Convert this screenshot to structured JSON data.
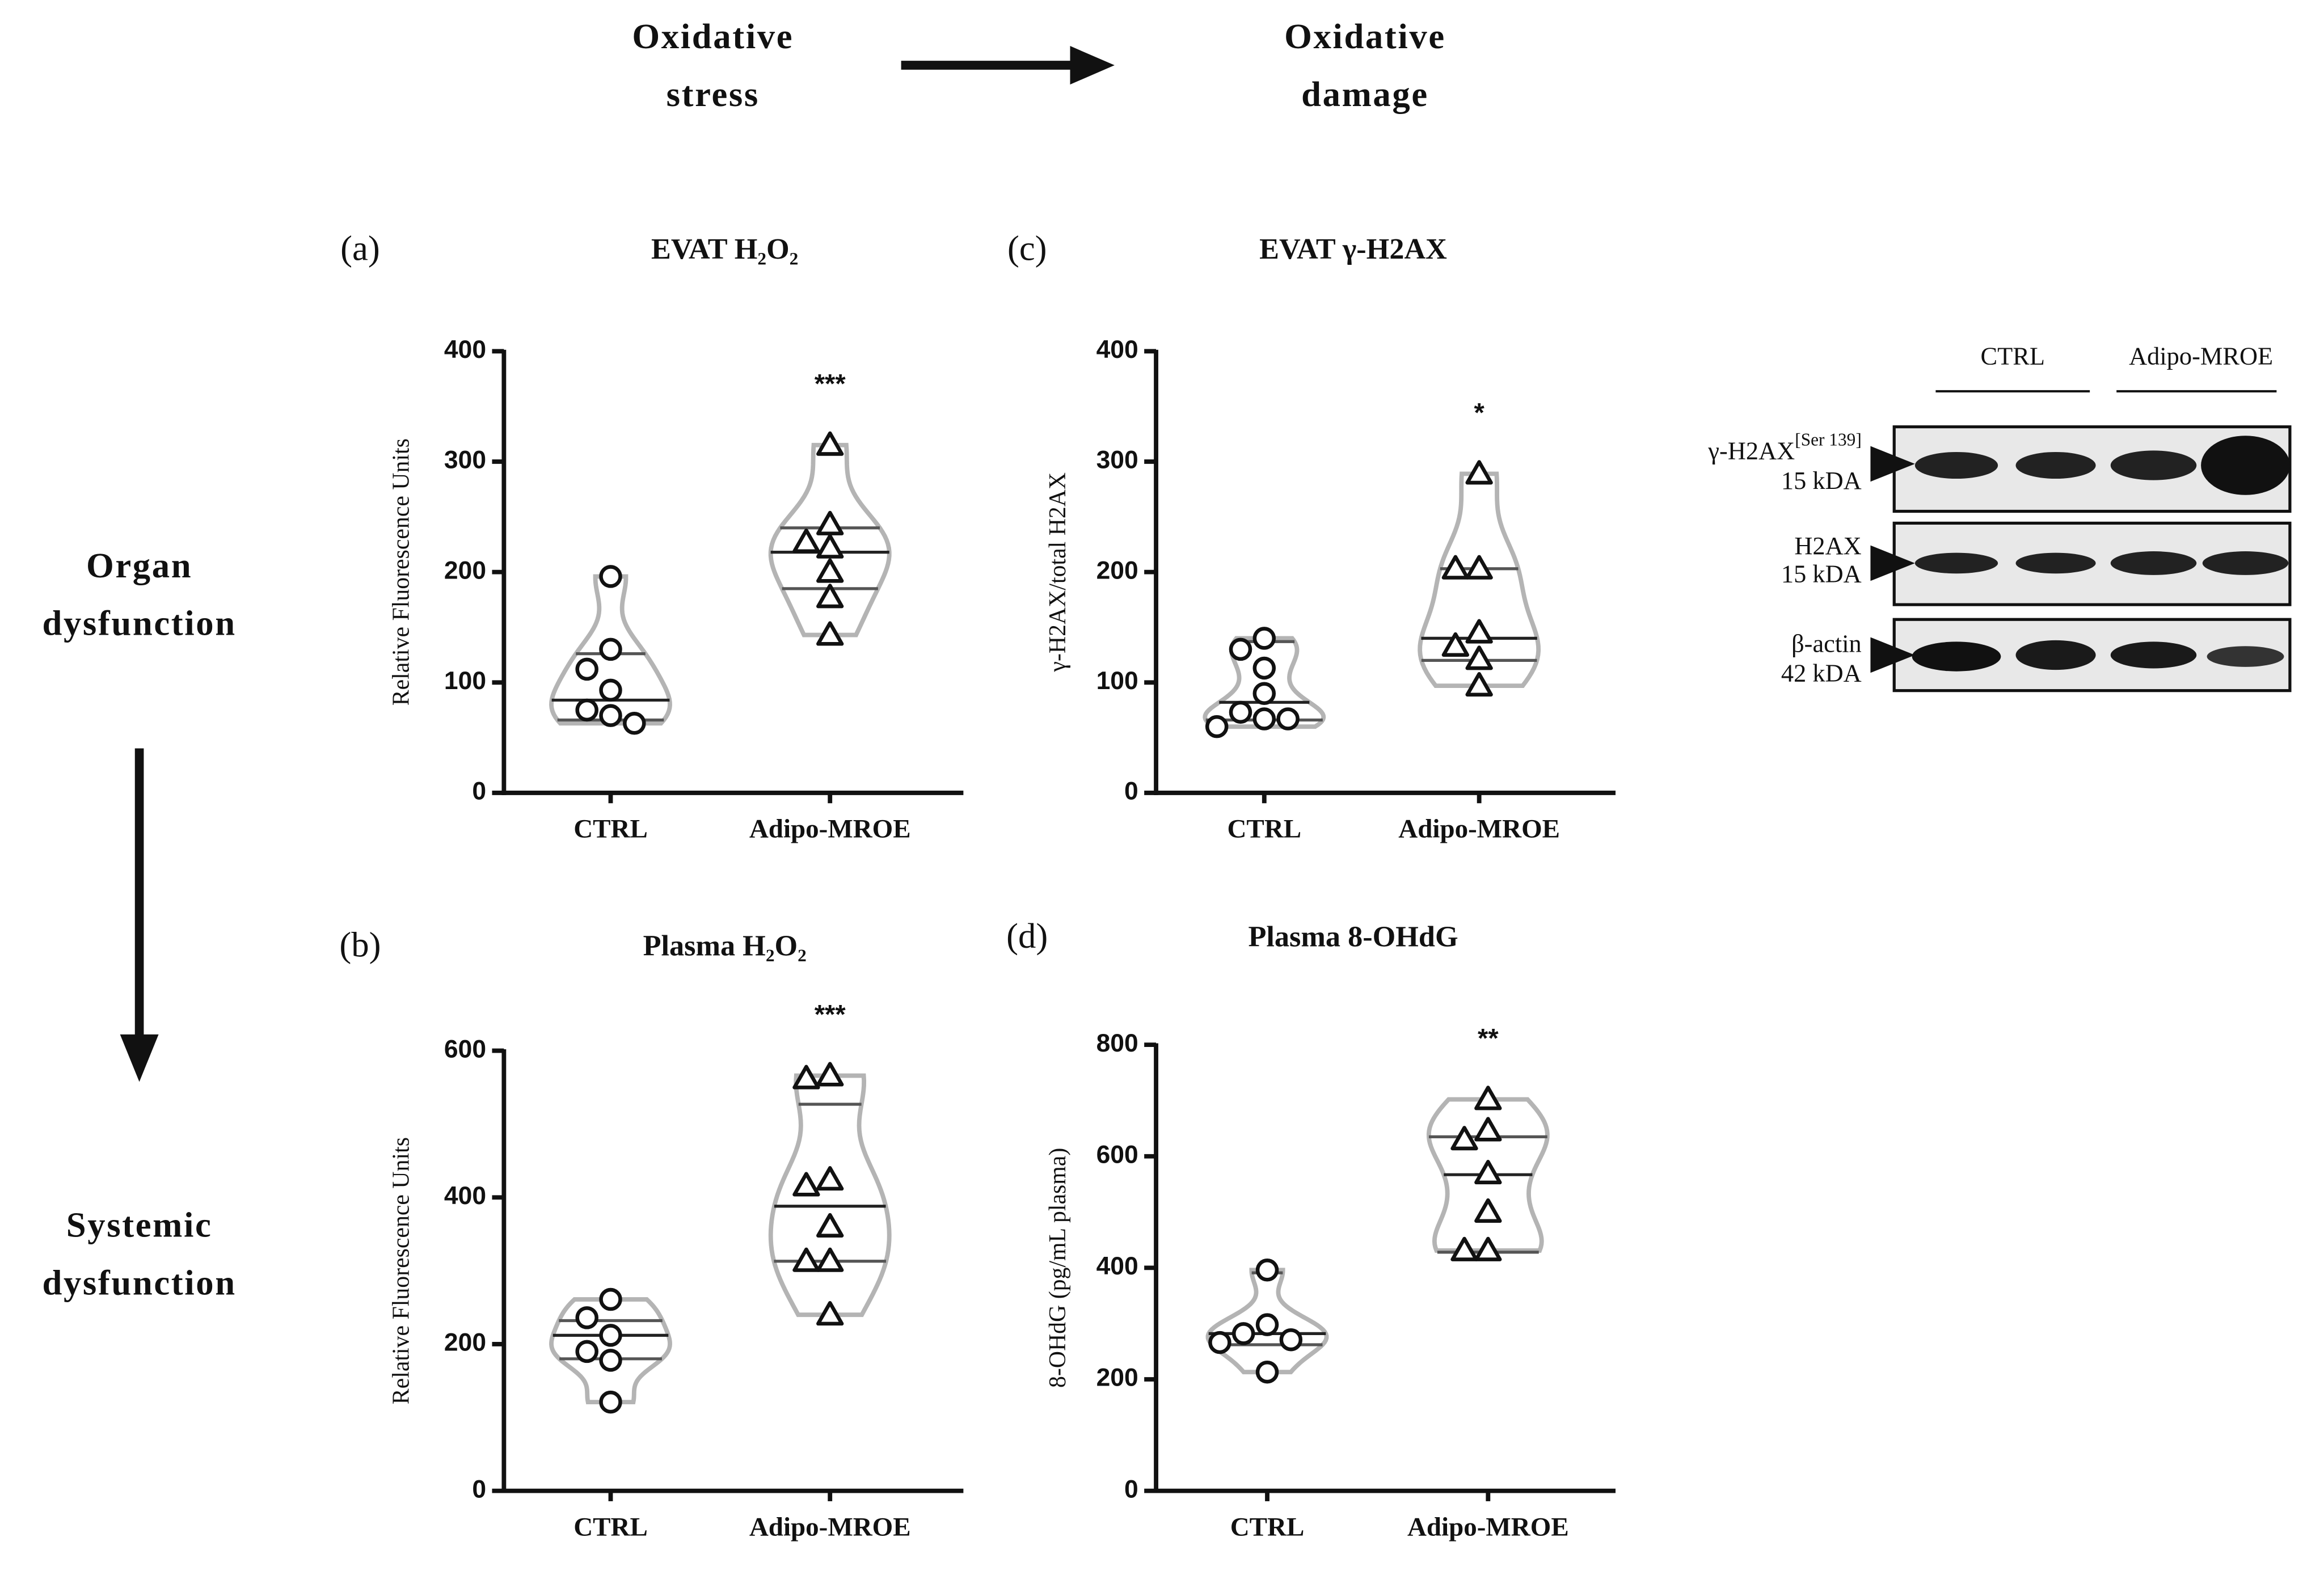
{
  "header": {
    "left": [
      "Oxidative",
      "stress"
    ],
    "right": [
      "Oxidative",
      "damage"
    ]
  },
  "side": {
    "top": [
      "Organ",
      "dysfunction"
    ],
    "bottom": [
      "Systemic",
      "dysfunction"
    ]
  },
  "blot": {
    "lanes": [
      "CTRL",
      "Adipo-MROE"
    ],
    "rows": [
      {
        "name": "γ-H2AX",
        "superscript": "[Ser 139]",
        "size": "15 kDA"
      },
      {
        "name": "H2AX",
        "size": "15 kDA"
      },
      {
        "name": "β-actin",
        "size": "42 kDA"
      }
    ]
  },
  "chart_data": [
    {
      "type": "violin",
      "label": "(a)",
      "title": "EVAT H₂O₂",
      "ylabel": "Relative Fluorescence Units",
      "categories": [
        "CTRL",
        "Adipo-MROE"
      ],
      "annotation": "***",
      "ylim": [
        0,
        400
      ],
      "yticks": [
        0,
        100,
        200,
        300,
        400
      ],
      "violin_color": "#b4b4b4",
      "marker_color": "#111111",
      "groups": [
        {
          "marker": "circle",
          "values": [
            196,
            130,
            112,
            93,
            75,
            70,
            63
          ],
          "lines": [
            126,
            84,
            66
          ]
        },
        {
          "marker": "triangle",
          "values": [
            315,
            243,
            227,
            222,
            200,
            177,
            143
          ],
          "lines": [
            240,
            218,
            185
          ]
        }
      ]
    },
    {
      "type": "violin",
      "label": "(b)",
      "title": "Plasma H₂O₂",
      "ylabel": "Relative Fluorescence Units",
      "categories": [
        "CTRL",
        "Adipo-MROE"
      ],
      "annotation": "***",
      "ylim": [
        0,
        600
      ],
      "yticks": [
        0,
        200,
        400,
        600
      ],
      "violin_color": "#b4b4b4",
      "marker_color": "#111111",
      "groups": [
        {
          "marker": "circle",
          "values": [
            261,
            236,
            212,
            190,
            178,
            121
          ],
          "lines": [
            232,
            212,
            180
          ]
        },
        {
          "marker": "triangle",
          "values": [
            566,
            562,
            424,
            416,
            360,
            313,
            313,
            240
          ],
          "lines": [
            527,
            388,
            313
          ]
        }
      ]
    },
    {
      "type": "violin",
      "label": "(c)",
      "title": "EVAT γ-H2AX",
      "ylabel": "γ-H2AX/total H2AX",
      "categories": [
        "CTRL",
        "Adipo-MROE"
      ],
      "annotation": "*",
      "ylim": [
        0,
        400
      ],
      "yticks": [
        0,
        100,
        200,
        300,
        400
      ],
      "violin_color": "#b4b4b4",
      "marker_color": "#111111",
      "groups": [
        {
          "marker": "circle",
          "values": [
            140,
            130,
            113,
            90,
            73,
            67,
            67,
            60
          ],
          "lines": [
            137,
            82,
            66
          ]
        },
        {
          "marker": "triangle",
          "values": [
            289,
            203,
            203,
            145,
            133,
            121,
            97
          ],
          "lines": [
            203,
            140,
            120
          ]
        }
      ]
    },
    {
      "type": "violin",
      "label": "(d)",
      "title": "Plasma 8-OHdG",
      "ylabel": "8-OHdG (pg/mL plasma)",
      "categories": [
        "CTRL",
        "Adipo-MROE"
      ],
      "annotation": "**",
      "ylim": [
        0,
        800
      ],
      "yticks": [
        0,
        200,
        400,
        600,
        800
      ],
      "violin_color": "#b4b4b4",
      "marker_color": "#111111",
      "groups": [
        {
          "marker": "circle",
          "values": [
            396,
            298,
            282,
            271,
            266,
            213
          ],
          "lines": [
            391,
            282,
            262
          ]
        },
        {
          "marker": "triangle",
          "values": [
            702,
            646,
            630,
            569,
            500,
            431,
            431
          ],
          "lines": [
            635,
            567,
            428
          ]
        }
      ]
    }
  ]
}
